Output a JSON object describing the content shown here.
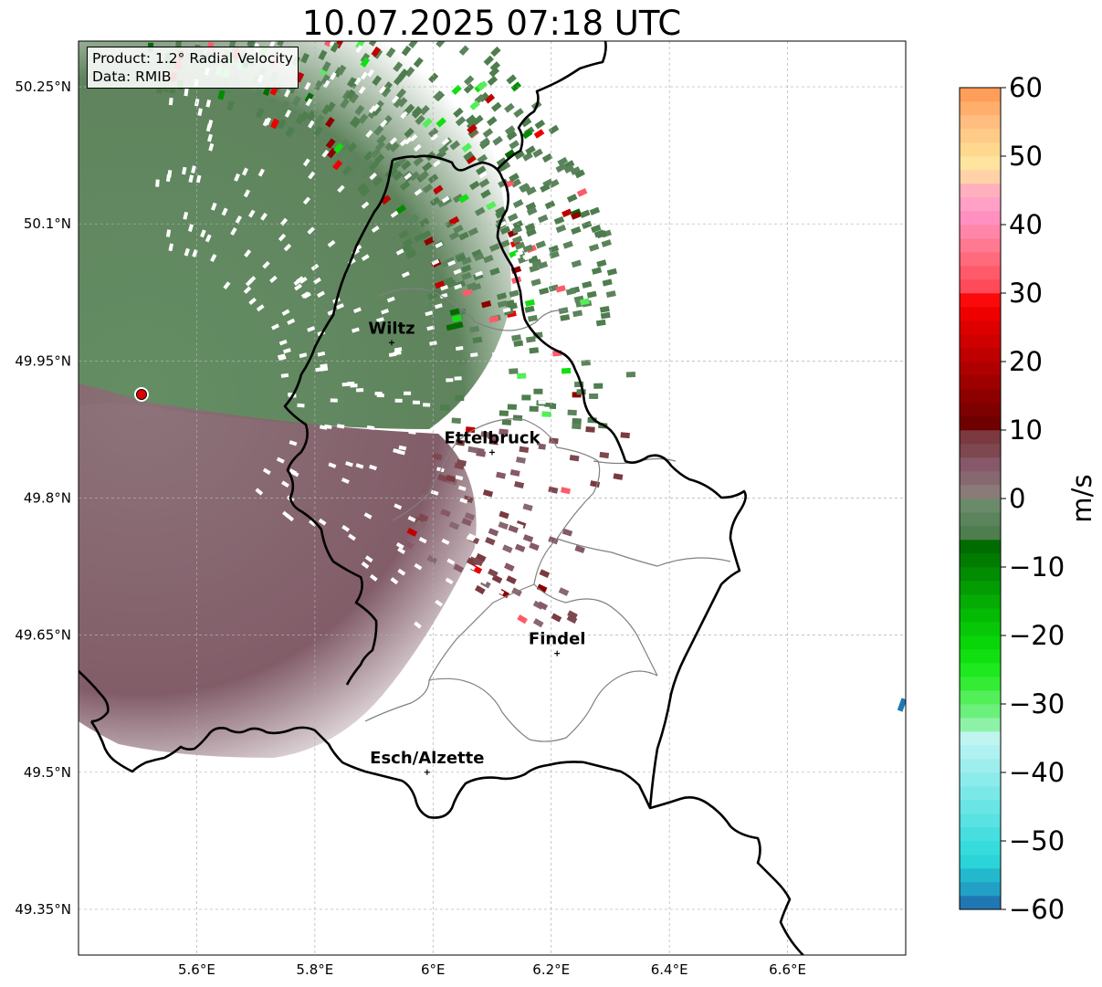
{
  "title": "10.07.2025 07:18 UTC",
  "info": {
    "product": "Product: 1.2° Radial Velocity",
    "data_source": "Data: RMIB"
  },
  "map": {
    "lon_range": [
      5.4,
      6.8
    ],
    "lat_range": [
      49.3,
      50.3
    ],
    "x_ticks": [
      {
        "value": 5.6,
        "label": "5.6°E"
      },
      {
        "value": 5.8,
        "label": "5.8°E"
      },
      {
        "value": 6.0,
        "label": "6°E"
      },
      {
        "value": 6.2,
        "label": "6.2°E"
      },
      {
        "value": 6.4,
        "label": "6.4°E"
      },
      {
        "value": 6.6,
        "label": "6.6°E"
      }
    ],
    "y_ticks": [
      {
        "value": 50.25,
        "label": "50.25°N"
      },
      {
        "value": 50.1,
        "label": "50.1°N"
      },
      {
        "value": 49.95,
        "label": "49.95°N"
      },
      {
        "value": 49.8,
        "label": "49.8°N"
      },
      {
        "value": 49.65,
        "label": "49.65°N"
      },
      {
        "value": 49.5,
        "label": "49.5°N"
      },
      {
        "value": 49.35,
        "label": "49.35°N"
      }
    ],
    "cities": [
      {
        "name": "Wiltz",
        "lon": 5.93,
        "lat": 49.97
      },
      {
        "name": "Ettelbruck",
        "lon": 6.1,
        "lat": 49.85
      },
      {
        "name": "Findel",
        "lon": 6.21,
        "lat": 49.63
      },
      {
        "name": "Esch/Alzette",
        "lon": 5.99,
        "lat": 49.5
      }
    ],
    "radar_site": {
      "lon": 5.505,
      "lat": 49.915,
      "color": "#e00000"
    }
  },
  "colorbar": {
    "label": "m/s",
    "min": -60,
    "max": 60,
    "ticks": [
      {
        "value": 60,
        "label": "60"
      },
      {
        "value": 50,
        "label": "50"
      },
      {
        "value": 40,
        "label": "40"
      },
      {
        "value": 30,
        "label": "30"
      },
      {
        "value": 20,
        "label": "20"
      },
      {
        "value": 10,
        "label": "10"
      },
      {
        "value": 0,
        "label": "0"
      },
      {
        "value": -10,
        "label": "−10"
      },
      {
        "value": -20,
        "label": "−20"
      },
      {
        "value": -30,
        "label": "−30"
      },
      {
        "value": -40,
        "label": "−40"
      },
      {
        "value": -50,
        "label": "−50"
      },
      {
        "value": -60,
        "label": "−60"
      }
    ],
    "bands": [
      {
        "from": -60,
        "to": -58,
        "color": "#1f78b4"
      },
      {
        "from": -58,
        "to": -56,
        "color": "#22a0c6"
      },
      {
        "from": -56,
        "to": -54,
        "color": "#23b8cc"
      },
      {
        "from": -54,
        "to": -52,
        "color": "#2ad4d8"
      },
      {
        "from": -52,
        "to": -50,
        "color": "#36dbdc"
      },
      {
        "from": -50,
        "to": -48,
        "color": "#46dede"
      },
      {
        "from": -48,
        "to": -46,
        "color": "#58e2e2"
      },
      {
        "from": -46,
        "to": -44,
        "color": "#6ae5e5"
      },
      {
        "from": -44,
        "to": -42,
        "color": "#7be8e8"
      },
      {
        "from": -42,
        "to": -40,
        "color": "#8cebeb"
      },
      {
        "from": -40,
        "to": -38,
        "color": "#9eeeee"
      },
      {
        "from": -38,
        "to": -36,
        "color": "#b0f1f1"
      },
      {
        "from": -36,
        "to": -34,
        "color": "#bff4f0"
      },
      {
        "from": -34,
        "to": -32,
        "color": "#8ef2a6"
      },
      {
        "from": -32,
        "to": -30,
        "color": "#6bf07c"
      },
      {
        "from": -30,
        "to": -28,
        "color": "#52ef58"
      },
      {
        "from": -28,
        "to": -26,
        "color": "#33ec33"
      },
      {
        "from": -26,
        "to": -24,
        "color": "#1ee81e"
      },
      {
        "from": -24,
        "to": -22,
        "color": "#10e010"
      },
      {
        "from": -22,
        "to": -20,
        "color": "#08d608"
      },
      {
        "from": -20,
        "to": -18,
        "color": "#06c806"
      },
      {
        "from": -18,
        "to": -16,
        "color": "#05ba05"
      },
      {
        "from": -16,
        "to": -14,
        "color": "#04ac04"
      },
      {
        "from": -14,
        "to": -12,
        "color": "#039c03"
      },
      {
        "from": -12,
        "to": -10,
        "color": "#028c02"
      },
      {
        "from": -10,
        "to": -8,
        "color": "#017c01"
      },
      {
        "from": -8,
        "to": -6,
        "color": "#006c00"
      },
      {
        "from": -6,
        "to": -4,
        "color": "#4e7d4e"
      },
      {
        "from": -4,
        "to": -2,
        "color": "#5c845c"
      },
      {
        "from": -2,
        "to": 0,
        "color": "#6a8b6a"
      },
      {
        "from": 0,
        "to": 2,
        "color": "#8a7a78"
      },
      {
        "from": 2,
        "to": 4,
        "color": "#886870"
      },
      {
        "from": 4,
        "to": 6,
        "color": "#86586a"
      },
      {
        "from": 6,
        "to": 8,
        "color": "#7e4850"
      },
      {
        "from": 8,
        "to": 10,
        "color": "#7a3a40"
      },
      {
        "from": 10,
        "to": 12,
        "color": "#6e0000"
      },
      {
        "from": 12,
        "to": 14,
        "color": "#7e0000"
      },
      {
        "from": 14,
        "to": 16,
        "color": "#8e0000"
      },
      {
        "from": 16,
        "to": 18,
        "color": "#9e0000"
      },
      {
        "from": 18,
        "to": 20,
        "color": "#ae0000"
      },
      {
        "from": 20,
        "to": 22,
        "color": "#be0000"
      },
      {
        "from": 22,
        "to": 24,
        "color": "#ce0000"
      },
      {
        "from": 24,
        "to": 26,
        "color": "#de0000"
      },
      {
        "from": 26,
        "to": 28,
        "color": "#ee0000"
      },
      {
        "from": 28,
        "to": 30,
        "color": "#fa0a0a"
      },
      {
        "from": 30,
        "to": 32,
        "color": "#ff4a5a"
      },
      {
        "from": 32,
        "to": 34,
        "color": "#ff5a6a"
      },
      {
        "from": 34,
        "to": 36,
        "color": "#ff6a7c"
      },
      {
        "from": 36,
        "to": 38,
        "color": "#ff7a90"
      },
      {
        "from": 38,
        "to": 40,
        "color": "#ff86a8"
      },
      {
        "from": 40,
        "to": 42,
        "color": "#ff90c0"
      },
      {
        "from": 42,
        "to": 44,
        "color": "#ffa0c6"
      },
      {
        "from": 44,
        "to": 46,
        "color": "#ffb0bc"
      },
      {
        "from": 46,
        "to": 48,
        "color": "#ffd2a8"
      },
      {
        "from": 48,
        "to": 50,
        "color": "#ffe4a0"
      },
      {
        "from": 50,
        "to": 52,
        "color": "#ffd890"
      },
      {
        "from": 52,
        "to": 54,
        "color": "#ffcb88"
      },
      {
        "from": 54,
        "to": 56,
        "color": "#ffbe80"
      },
      {
        "from": 56,
        "to": 58,
        "color": "#ffae6c"
      },
      {
        "from": 58,
        "to": 60,
        "color": "#ff9e58"
      }
    ]
  },
  "colors": {
    "border": "#000000",
    "canton_lines": "#808080",
    "grid": "#b0b0b0"
  }
}
